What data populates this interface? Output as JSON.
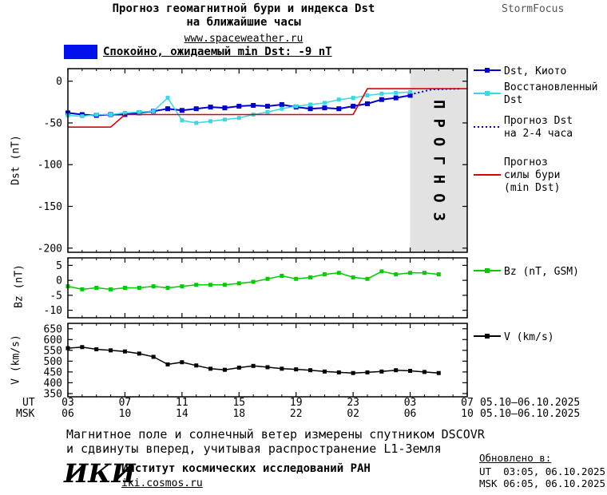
{
  "header": {
    "title_line1": "Прогноз геомагнитной бури и индекса Dst",
    "title_line2": "на ближайшие часы",
    "site": "www.spaceweather.ru",
    "brand": "StormFocus"
  },
  "status": {
    "label": "Спокойно, ожидаемый min Dst: -9 nT",
    "swatch_color": "#0011ee"
  },
  "chart_data": [
    {
      "type": "line",
      "panel": "dst",
      "ylabel": "Dst (nT)",
      "ylim": [
        -205,
        15
      ],
      "yticks": [
        0,
        -50,
        -100,
        -150,
        -200
      ],
      "xlim": [
        3,
        31
      ],
      "xticks_hours": [
        3,
        7,
        11,
        15,
        19,
        23,
        27,
        31
      ],
      "forecast_band": {
        "from": 27,
        "to": 31,
        "label": "ПРОГНОЗ",
        "fill": "#e2e2e2",
        "text_color": "#b4b4b4"
      },
      "series": [
        {
          "id": "dst-kyoto",
          "name": "Dst, Киото",
          "color": "#0000cc",
          "marker": true,
          "msize": 6,
          "lw": 2,
          "x": [
            3,
            4,
            5,
            6,
            7,
            8,
            9,
            10,
            11,
            12,
            13,
            14,
            15,
            16,
            17,
            18,
            19,
            20,
            21,
            22,
            23,
            24,
            25,
            26,
            27
          ],
          "y": [
            -38,
            -40,
            -41,
            -40,
            -40,
            -38,
            -36,
            -33,
            -35,
            -33,
            -31,
            -32,
            -30,
            -29,
            -30,
            -28,
            -31,
            -33,
            -32,
            -33,
            -30,
            -27,
            -22,
            -20,
            -17
          ]
        },
        {
          "id": "dst-restored",
          "name": "Восстановленный Dst",
          "color": "#35d9e8",
          "marker": true,
          "msize": 5,
          "lw": 1.5,
          "x": [
            3,
            4,
            5,
            6,
            7,
            8,
            9,
            10,
            11,
            12,
            13,
            14,
            15,
            16,
            17,
            18,
            19,
            20,
            21,
            22,
            23,
            24,
            25,
            26,
            27
          ],
          "y": [
            -41,
            -42,
            -40,
            -40,
            -38,
            -37,
            -36,
            -20,
            -47,
            -50,
            -48,
            -46,
            -44,
            -40,
            -37,
            -33,
            -30,
            -28,
            -26,
            -22,
            -20,
            -17,
            -15,
            -14,
            -13
          ]
        },
        {
          "id": "dst-forecast",
          "name": "Прогноз Dst на 2-4 часа",
          "color": "#0000cc",
          "style": "dotted",
          "lw": 2,
          "x": [
            27,
            28.5,
            30.5
          ],
          "y": [
            -16,
            -10,
            -9
          ]
        },
        {
          "id": "storm-forecast",
          "name": "Прогноз силы бури (min Dst)",
          "color": "#dd0000",
          "lw": 1.6,
          "x": [
            3,
            6,
            7,
            23,
            24,
            31
          ],
          "y": [
            -55,
            -55,
            -40,
            -40,
            -9,
            -9
          ]
        }
      ]
    },
    {
      "type": "line",
      "panel": "bz",
      "ylabel": "Bz (nT)",
      "ylim": [
        -12.5,
        7.5
      ],
      "yticks": [
        5,
        0,
        -5,
        -10
      ],
      "xlim": [
        3,
        31
      ],
      "xticks_hours": [
        3,
        7,
        11,
        15,
        19,
        23,
        27,
        31
      ],
      "series": [
        {
          "id": "bz",
          "name": "Bz (nT, GSM)",
          "color": "#00cc00",
          "marker": true,
          "msize": 5,
          "lw": 1.5,
          "x": [
            3,
            4,
            5,
            6,
            7,
            8,
            9,
            10,
            11,
            12,
            13,
            14,
            15,
            16,
            17,
            18,
            19,
            20,
            21,
            22,
            23,
            24,
            25,
            26,
            27,
            28,
            29
          ],
          "y": [
            -2,
            -3,
            -2.5,
            -3,
            -2.5,
            -2.5,
            -2,
            -2.5,
            -2,
            -1.5,
            -1.5,
            -1.5,
            -1,
            -0.5,
            0.5,
            1.5,
            0.5,
            1,
            2,
            2.5,
            1,
            0.5,
            3,
            2,
            2.5,
            2.5,
            2
          ]
        }
      ]
    },
    {
      "type": "line",
      "panel": "v",
      "ylabel": "V (km/s)",
      "ylim": [
        335,
        675
      ],
      "yticks": [
        650,
        600,
        550,
        500,
        450,
        400,
        350
      ],
      "xlim": [
        3,
        31
      ],
      "xticks_hours": [
        3,
        7,
        11,
        15,
        19,
        23,
        27,
        31
      ],
      "series": [
        {
          "id": "v",
          "name": "V (km/s)",
          "color": "#000000",
          "marker": true,
          "msize": 5,
          "lw": 1.5,
          "x": [
            3,
            4,
            5,
            6,
            7,
            8,
            9,
            10,
            11,
            12,
            13,
            14,
            15,
            16,
            17,
            18,
            19,
            20,
            21,
            22,
            23,
            24,
            25,
            26,
            27,
            28,
            29
          ],
          "y": [
            560,
            565,
            555,
            550,
            545,
            535,
            520,
            485,
            495,
            480,
            465,
            460,
            470,
            478,
            472,
            465,
            462,
            458,
            452,
            448,
            445,
            448,
            452,
            458,
            455,
            450,
            445
          ]
        }
      ]
    }
  ],
  "xaxis": {
    "ut_prefix": "UT",
    "msk_prefix": "MSK",
    "ut_labels": [
      "03",
      "07",
      "11",
      "15",
      "19",
      "23",
      "03",
      "07"
    ],
    "msk_labels": [
      "06",
      "10",
      "14",
      "18",
      "22",
      "02",
      "06",
      "10"
    ],
    "ut_date": "05.10–06.10.2025",
    "msk_date": "05.10–06.10.2025"
  },
  "legend_main": [
    {
      "label": "Dst, Киото",
      "color": "#0000cc",
      "marker": true
    },
    {
      "label": "Восстановленный\nDst",
      "color": "#35d9e8",
      "marker": true
    },
    {
      "label": "Прогноз Dst\nна 2-4 часа",
      "color": "#0000cc",
      "style": "dotted"
    },
    {
      "label": "Прогноз\nсилы бури\n(min Dst)",
      "color": "#dd0000"
    }
  ],
  "legend_bz": {
    "label": "Bz (nT, GSM)",
    "color": "#00cc00",
    "marker": true
  },
  "legend_v": {
    "label": "V (km/s)",
    "color": "#000000",
    "marker": true
  },
  "footer": {
    "note_line1": "Магнитное поле и солнечный ветер измерены спутником DSCOVR",
    "note_line2": "и сдвинуты вперед, учитывая распространение L1-Земля",
    "updated_label": "Обновлено в:",
    "updated_ut": "UT  03:05, 06.10.2025",
    "updated_msk": "MSK 06:05, 06.10.2025",
    "logo": "ИКИ",
    "institute": "Институт космических исследований РАН",
    "site": "iki.cosmos.ru"
  }
}
